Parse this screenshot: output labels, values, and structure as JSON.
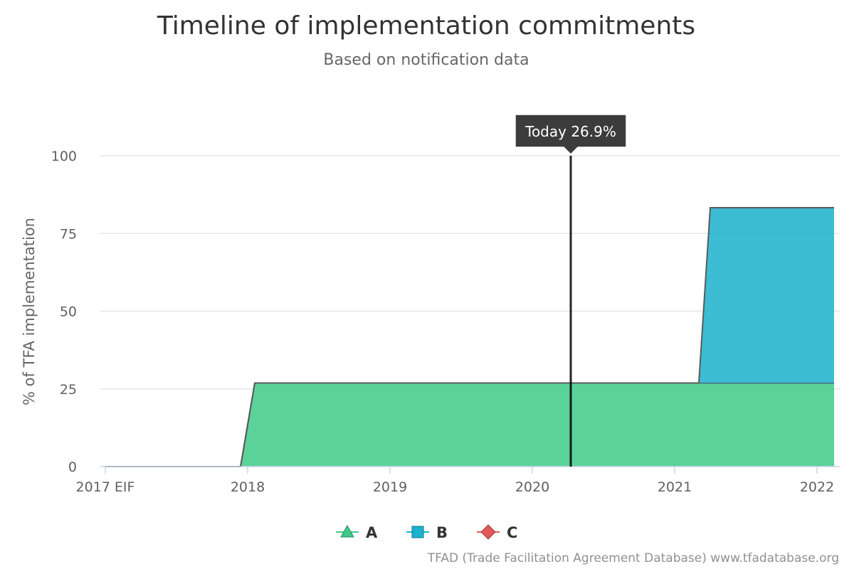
{
  "chart_data": {
    "type": "area",
    "title": "Timeline of implementation commitments",
    "subtitle": "Based on notification data",
    "ylabel": "% of TFA implementation",
    "xlabel": "",
    "x_ticks": [
      {
        "x": 2017.0,
        "label": "2017 EIF"
      },
      {
        "x": 2018.0,
        "label": "2018"
      },
      {
        "x": 2019.0,
        "label": "2019"
      },
      {
        "x": 2020.0,
        "label": "2020"
      },
      {
        "x": 2021.0,
        "label": "2021"
      },
      {
        "x": 2022.0,
        "label": "2022"
      }
    ],
    "y_ticks": [
      0,
      25,
      50,
      75,
      100
    ],
    "xlim": [
      2017.0,
      2022.15
    ],
    "ylim": [
      0,
      100
    ],
    "grid": true,
    "legend_position": "bottom",
    "stacked": true,
    "series": [
      {
        "name": "A",
        "color": "#3fca8a",
        "marker": "triangle",
        "x": [
          2017.0,
          2017.95,
          2018.05,
          2022.12
        ],
        "y": [
          0,
          0,
          26.9,
          26.9
        ]
      },
      {
        "name": "B",
        "color": "#1ab2cc",
        "marker": "square",
        "x": [
          2017.0,
          2021.17,
          2021.25,
          2022.12
        ],
        "y": [
          0,
          0,
          56.4,
          56.4
        ]
      },
      {
        "name": "C",
        "color": "#e05a5a",
        "marker": "diamond",
        "x": [],
        "y": []
      }
    ],
    "today_marker": {
      "x": 2020.27,
      "label": "Today 26.9%"
    }
  },
  "credit": "TFAD (Trade Facilitation Agreement Database) www.tfadatabase.org"
}
